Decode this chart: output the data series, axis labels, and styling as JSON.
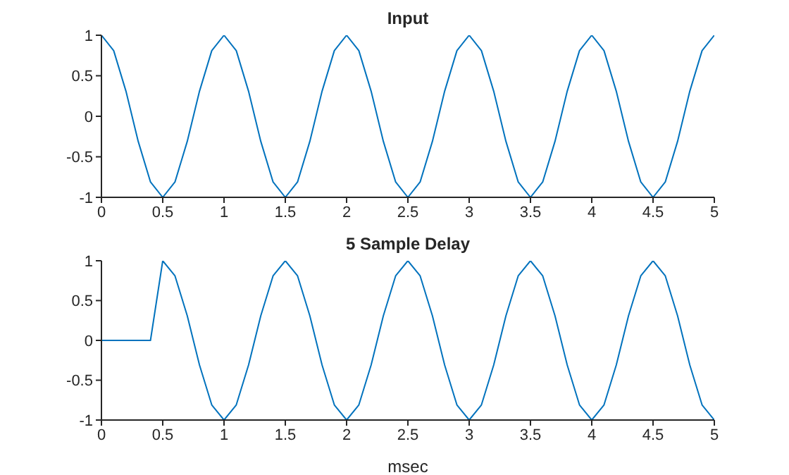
{
  "chart_data": [
    {
      "type": "line",
      "title": "Input",
      "x": [
        0,
        0.1,
        0.2,
        0.3,
        0.4,
        0.5,
        0.6,
        0.7,
        0.8,
        0.9,
        1,
        1.1,
        1.2,
        1.3,
        1.4,
        1.5,
        1.6,
        1.7,
        1.8,
        1.9,
        2,
        2.1,
        2.2,
        2.3,
        2.4,
        2.5,
        2.6,
        2.7,
        2.8,
        2.9,
        3,
        3.1,
        3.2,
        3.3,
        3.4,
        3.5,
        3.6,
        3.7,
        3.8,
        3.9,
        4,
        4.1,
        4.2,
        4.3,
        4.4,
        4.5,
        4.6,
        4.7,
        4.8,
        4.9,
        5
      ],
      "series": [
        {
          "color": "#0072bd",
          "values": [
            1,
            0.81,
            0.31,
            -0.31,
            -0.81,
            -1,
            -0.81,
            -0.31,
            0.31,
            0.81,
            1,
            0.81,
            0.31,
            -0.31,
            -0.81,
            -1,
            -0.81,
            -0.31,
            0.31,
            0.81,
            1,
            0.81,
            0.31,
            -0.31,
            -0.81,
            -1,
            -0.81,
            -0.31,
            0.31,
            0.81,
            1,
            0.81,
            0.31,
            -0.31,
            -0.81,
            -1,
            -0.81,
            -0.31,
            0.31,
            0.81,
            1,
            0.81,
            0.31,
            -0.31,
            -0.81,
            -1,
            -0.81,
            -0.31,
            0.31,
            0.81,
            1
          ]
        }
      ],
      "xlim": [
        0,
        5
      ],
      "xticks": [
        0,
        0.5,
        1,
        1.5,
        2,
        2.5,
        3,
        3.5,
        4,
        4.5,
        5
      ],
      "ylim": [
        -1,
        1
      ],
      "yticks": [
        -1,
        -0.5,
        0,
        0.5,
        1
      ],
      "grid": false,
      "legend": false,
      "marker": "none",
      "line_style": "solid"
    },
    {
      "type": "line",
      "title": "5 Sample Delay",
      "xlabel": "msec",
      "x": [
        0,
        0.1,
        0.2,
        0.3,
        0.4,
        0.5,
        0.6,
        0.7,
        0.8,
        0.9,
        1,
        1.1,
        1.2,
        1.3,
        1.4,
        1.5,
        1.6,
        1.7,
        1.8,
        1.9,
        2,
        2.1,
        2.2,
        2.3,
        2.4,
        2.5,
        2.6,
        2.7,
        2.8,
        2.9,
        3,
        3.1,
        3.2,
        3.3,
        3.4,
        3.5,
        3.6,
        3.7,
        3.8,
        3.9,
        4,
        4.1,
        4.2,
        4.3,
        4.4,
        4.5,
        4.6,
        4.7,
        4.8,
        4.9,
        5
      ],
      "series": [
        {
          "color": "#0072bd",
          "values": [
            0,
            0,
            0,
            0,
            0,
            1,
            0.81,
            0.31,
            -0.31,
            -0.81,
            -1,
            -0.81,
            -0.31,
            0.31,
            0.81,
            1,
            0.81,
            0.31,
            -0.31,
            -0.81,
            -1,
            -0.81,
            -0.31,
            0.31,
            0.81,
            1,
            0.81,
            0.31,
            -0.31,
            -0.81,
            -1,
            -0.81,
            -0.31,
            0.31,
            0.81,
            1,
            0.81,
            0.31,
            -0.31,
            -0.81,
            -1,
            -0.81,
            -0.31,
            0.31,
            0.81,
            1,
            0.81,
            0.31,
            -0.31,
            -0.81,
            -1
          ]
        }
      ],
      "xlim": [
        0,
        5
      ],
      "xticks": [
        0,
        0.5,
        1,
        1.5,
        2,
        2.5,
        3,
        3.5,
        4,
        4.5,
        5
      ],
      "ylim": [
        -1,
        1
      ],
      "yticks": [
        -1,
        -0.5,
        0,
        0.5,
        1
      ],
      "grid": false,
      "legend": false,
      "marker": "none",
      "line_style": "solid"
    }
  ]
}
